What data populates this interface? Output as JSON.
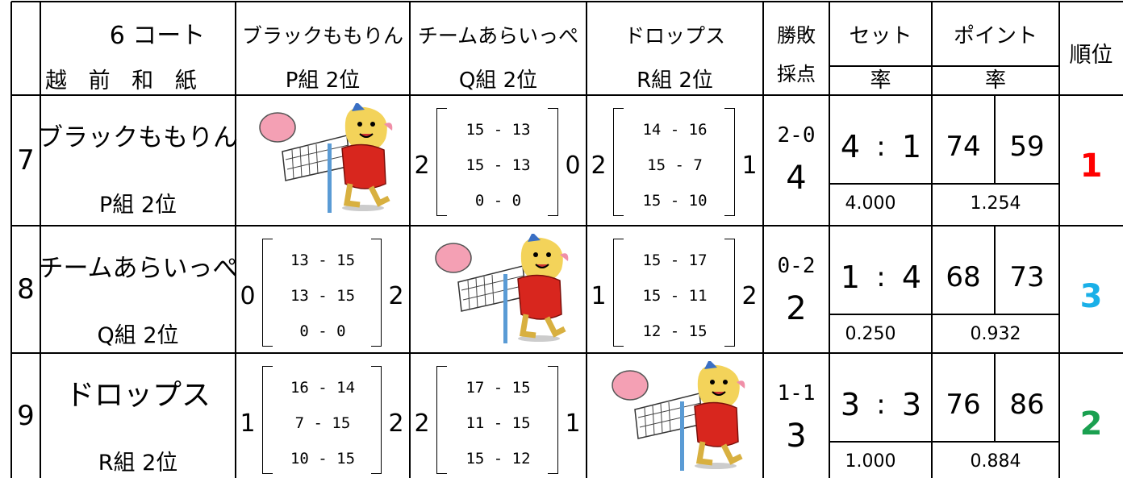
{
  "header": {
    "court": "6 コート",
    "venue": "越 前 和 紙",
    "teams": [
      {
        "name": "ブラックももりん",
        "group": "P組 2位"
      },
      {
        "name": "チームあらいっぺ",
        "group": "Q組 2位"
      },
      {
        "name": "ドロップス",
        "group": "R組 2位"
      }
    ],
    "result": [
      "勝敗",
      "採点"
    ],
    "sets": "セット",
    "points": "ポイント",
    "set_rate": "率",
    "point_rate": "率",
    "rank": "順位"
  },
  "rows": [
    {
      "no": "7",
      "name": "ブラックももりん",
      "group": "P組 2位",
      "matches": [
        null,
        {
          "left": "2",
          "scores": [
            "15 - 13",
            "15 - 13",
            "0 - 0"
          ],
          "right": "0"
        },
        {
          "left": "2",
          "scores": [
            "14 - 16",
            "15 - 7",
            "15 - 10"
          ],
          "right": "1"
        }
      ],
      "record": "2-0",
      "score": "4",
      "sets": {
        "won": "4",
        "sep": ":",
        "lost": "1",
        "rate": "4.000"
      },
      "points": {
        "for": "74",
        "against": "59",
        "rate": "1.254"
      },
      "rank": "1",
      "rank_color": "#ff0000"
    },
    {
      "no": "8",
      "name": "チームあらいっぺ",
      "group": "Q組 2位",
      "matches": [
        {
          "left": "0",
          "scores": [
            "13 - 15",
            "13 - 15",
            "0 - 0"
          ],
          "right": "2"
        },
        null,
        {
          "left": "1",
          "scores": [
            "15 - 17",
            "15 - 11",
            "12 - 15"
          ],
          "right": "2"
        }
      ],
      "record": "0-2",
      "score": "2",
      "sets": {
        "won": "1",
        "sep": ":",
        "lost": "4",
        "rate": "0.250"
      },
      "points": {
        "for": "68",
        "against": "73",
        "rate": "0.932"
      },
      "rank": "3",
      "rank_color": "#1ab0e8"
    },
    {
      "no": "9",
      "name": "ドロップス",
      "group": "R組 2位",
      "matches": [
        {
          "left": "1",
          "scores": [
            "16 - 14",
            "7 - 15",
            "10 - 15"
          ],
          "right": "2"
        },
        {
          "left": "2",
          "scores": [
            "17 - 15",
            "11 - 15",
            "15 - 12"
          ],
          "right": "1"
        },
        null
      ],
      "record": "1-1",
      "score": "3",
      "sets": {
        "won": "3",
        "sep": ":",
        "lost": "3",
        "rate": "1.000"
      },
      "points": {
        "for": "76",
        "against": "86",
        "rate": "0.884"
      },
      "rank": "2",
      "rank_color": "#1aa050"
    }
  ]
}
